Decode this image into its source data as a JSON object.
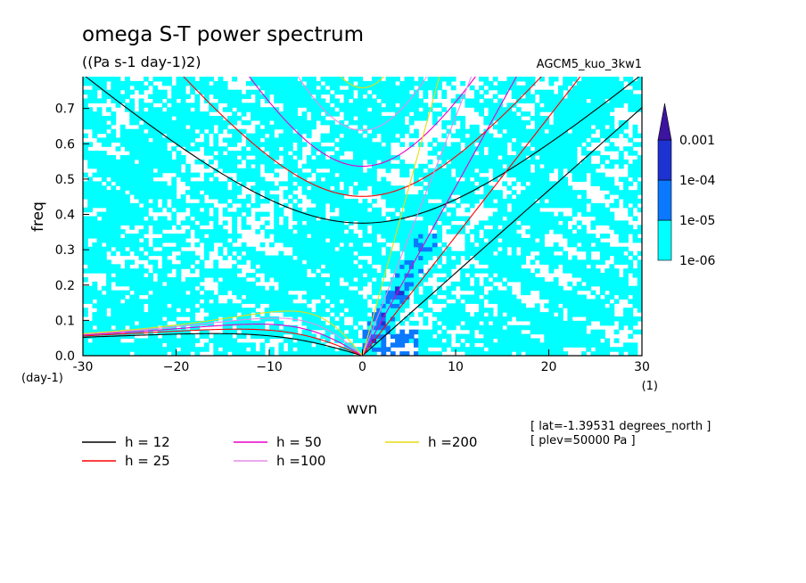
{
  "chart_data": {
    "type": "heatmap",
    "title": "omega S-T power spectrum",
    "units": "((Pa s-1 day-1)2)",
    "experiment": "AGCM5_kuo_3kw1",
    "xlabel": "wvn",
    "ylabel": "freq",
    "x_unit": "(1)",
    "y_unit": "(day-1)",
    "xlim": [
      -30,
      30
    ],
    "ylim": [
      0,
      0.79
    ],
    "x_ticks": [
      -30,
      -20,
      -10,
      0,
      10,
      20,
      30
    ],
    "x_tick_labels": [
      "-30",
      "−20",
      "−10",
      "0",
      "10",
      "20",
      "30"
    ],
    "y_ticks": [
      0.0,
      0.1,
      0.2,
      0.3,
      0.4,
      0.5,
      0.6,
      0.7
    ],
    "y_tick_labels": [
      "0.0",
      "0.1",
      "0.2",
      "0.3",
      "0.4",
      "0.5",
      "0.6",
      "0.7"
    ],
    "colorbar": {
      "levels": [
        1e-06,
        1e-05,
        0.0001,
        0.001
      ],
      "labels": [
        "1e-06",
        "1e-05",
        "1e-04",
        "0.001"
      ],
      "colors": [
        "#00ffff",
        "#0a78ff",
        "#1e32d2",
        "#3c14a0"
      ]
    },
    "equivalent_depths": [
      {
        "h": 12,
        "label": "h = 12",
        "color": "#000000"
      },
      {
        "h": 25,
        "label": "h = 25",
        "color": "#ff0000"
      },
      {
        "h": 50,
        "label": "h = 50",
        "color": "#e600c8"
      },
      {
        "h": 100,
        "label": "h =100",
        "color": "#e68ce6"
      },
      {
        "h": 200,
        "label": "h =200",
        "color": "#e6dc14"
      }
    ],
    "info": [
      "[ lat=-1.39531 degrees_north ]",
      "[ plev=50000 Pa ]"
    ]
  }
}
